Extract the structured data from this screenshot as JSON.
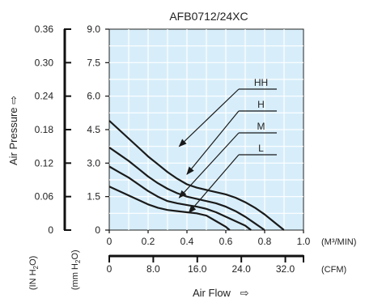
{
  "chart_data": {
    "type": "line",
    "title": "AFB0712/24XC",
    "ylabel": "Air Pressure",
    "ylabel_arrow": "⇨",
    "xlabel": "Air Flow",
    "xlabel_arrow": "⇨",
    "plot_bg": "#d7eefa",
    "line_color": "#1a1a1a",
    "grid": true,
    "x_axis": {
      "unit": "M³/MIN",
      "range": [
        0,
        1.0
      ],
      "ticks": [
        0,
        0.2,
        0.4,
        0.6,
        0.8,
        1.0
      ],
      "tick_labels": [
        "0",
        "0.2",
        "0.4",
        "0.6",
        "0.8",
        "1.0"
      ],
      "unit_label": "(M³/MIN)"
    },
    "x_axis_cfm": {
      "unit": "CFM",
      "range": [
        0,
        35.3
      ],
      "ticks": [
        0,
        8.0,
        16.0,
        24.0,
        32.0
      ],
      "tick_labels": [
        "0",
        "8.0",
        "16.0",
        "24.0",
        "32.0"
      ],
      "unit_label": "(CFM)"
    },
    "y_axis_mm": {
      "unit": "mm H2O",
      "range": [
        0,
        9.0
      ],
      "ticks": [
        0,
        1.5,
        3.0,
        4.5,
        6.0,
        7.5,
        9.0
      ],
      "tick_labels": [
        "0",
        "1.5",
        "3.0",
        "4.5",
        "6.0",
        "7.5",
        "9.0"
      ],
      "unit_label_main": "(mm H",
      "unit_label_sub": "2",
      "unit_label_end": "O)"
    },
    "y_axis_in": {
      "unit": "IN H2O",
      "range": [
        0,
        0.36
      ],
      "ticks": [
        0,
        0.06,
        0.12,
        0.18,
        0.24,
        0.3,
        0.36
      ],
      "tick_labels": [
        "0",
        "0.06",
        "0.12",
        "0.18",
        "0.24",
        "0.30",
        "0.36"
      ],
      "unit_label_main": "(IN H",
      "unit_label_sub": "2",
      "unit_label_end": "O)"
    },
    "series": [
      {
        "name": "HH",
        "points": [
          [
            0,
            4.9
          ],
          [
            0.05,
            4.5
          ],
          [
            0.1,
            4.1
          ],
          [
            0.15,
            3.7
          ],
          [
            0.2,
            3.3
          ],
          [
            0.25,
            2.95
          ],
          [
            0.3,
            2.6
          ],
          [
            0.35,
            2.3
          ],
          [
            0.4,
            2.05
          ],
          [
            0.45,
            1.9
          ],
          [
            0.5,
            1.8
          ],
          [
            0.55,
            1.7
          ],
          [
            0.6,
            1.6
          ],
          [
            0.65,
            1.45
          ],
          [
            0.7,
            1.25
          ],
          [
            0.75,
            1.0
          ],
          [
            0.8,
            0.7
          ],
          [
            0.85,
            0.35
          ],
          [
            0.9,
            0.0
          ]
        ],
        "arrow_to": [
          0.36,
          3.75
        ]
      },
      {
        "name": "H",
        "points": [
          [
            0,
            3.7
          ],
          [
            0.05,
            3.4
          ],
          [
            0.1,
            3.1
          ],
          [
            0.15,
            2.75
          ],
          [
            0.2,
            2.4
          ],
          [
            0.25,
            2.1
          ],
          [
            0.3,
            1.85
          ],
          [
            0.35,
            1.65
          ],
          [
            0.4,
            1.5
          ],
          [
            0.45,
            1.4
          ],
          [
            0.5,
            1.3
          ],
          [
            0.55,
            1.2
          ],
          [
            0.6,
            1.05
          ],
          [
            0.65,
            0.85
          ],
          [
            0.7,
            0.6
          ],
          [
            0.75,
            0.3
          ],
          [
            0.8,
            0.0
          ]
        ],
        "arrow_to": [
          0.4,
          2.5
        ]
      },
      {
        "name": "M",
        "points": [
          [
            0,
            2.85
          ],
          [
            0.05,
            2.6
          ],
          [
            0.1,
            2.35
          ],
          [
            0.15,
            2.05
          ],
          [
            0.2,
            1.75
          ],
          [
            0.25,
            1.5
          ],
          [
            0.3,
            1.3
          ],
          [
            0.35,
            1.2
          ],
          [
            0.4,
            1.12
          ],
          [
            0.45,
            1.05
          ],
          [
            0.5,
            0.95
          ],
          [
            0.55,
            0.8
          ],
          [
            0.6,
            0.6
          ],
          [
            0.65,
            0.4
          ],
          [
            0.7,
            0.2
          ],
          [
            0.73,
            0.0
          ]
        ],
        "arrow_to": [
          0.36,
          1.45
        ]
      },
      {
        "name": "L",
        "points": [
          [
            0,
            1.95
          ],
          [
            0.05,
            1.75
          ],
          [
            0.1,
            1.55
          ],
          [
            0.15,
            1.35
          ],
          [
            0.2,
            1.15
          ],
          [
            0.25,
            1.0
          ],
          [
            0.3,
            0.9
          ],
          [
            0.35,
            0.85
          ],
          [
            0.4,
            0.8
          ],
          [
            0.45,
            0.75
          ],
          [
            0.5,
            0.65
          ],
          [
            0.55,
            0.4
          ],
          [
            0.6,
            0.15
          ],
          [
            0.62,
            0.0
          ]
        ],
        "arrow_to": [
          0.41,
          0.78
        ]
      }
    ]
  }
}
